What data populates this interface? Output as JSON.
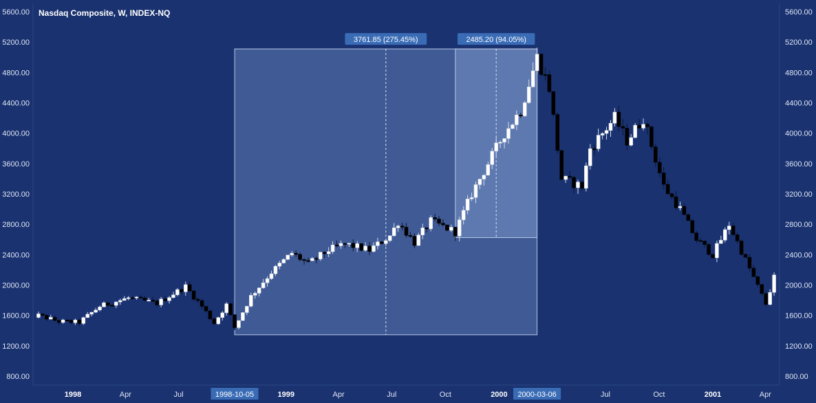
{
  "chart_data": {
    "type": "candlestick",
    "title": "Nasdaq Composite, W, INDEX-NQ",
    "ylim": [
      640,
      5720
    ],
    "y_ticks": [
      "5600.00",
      "5200.00",
      "4800.00",
      "4400.00",
      "4000.00",
      "3600.00",
      "3200.00",
      "2800.00",
      "2400.00",
      "2000.00",
      "1600.00",
      "1200.00",
      "800.00"
    ],
    "x_ticks": [
      {
        "label": "1998",
        "bold": true,
        "date": "1998-01-01"
      },
      {
        "label": "Apr",
        "bold": false,
        "date": "1998-04-01"
      },
      {
        "label": "Jul",
        "bold": false,
        "date": "1998-07-01"
      },
      {
        "label": "1999",
        "bold": true,
        "date": "1999-01-01"
      },
      {
        "label": "Apr",
        "bold": false,
        "date": "1999-04-01"
      },
      {
        "label": "Jul",
        "bold": false,
        "date": "1999-07-01"
      },
      {
        "label": "Oct",
        "bold": false,
        "date": "1999-10-01"
      },
      {
        "label": "2000",
        "bold": true,
        "date": "2000-01-01"
      },
      {
        "label": "Jul",
        "bold": false,
        "date": "2000-07-01"
      },
      {
        "label": "Oct",
        "bold": false,
        "date": "2000-10-01"
      },
      {
        "label": "2001",
        "bold": true,
        "date": "2001-01-01"
      },
      {
        "label": "Apr",
        "bold": false,
        "date": "2001-04-01"
      }
    ],
    "x_highlight_labels": [
      {
        "label": "1998-10-05",
        "date": "1998-10-05"
      },
      {
        "label": "2000-03-06",
        "date": "2000-03-06"
      }
    ],
    "measure_boxes": [
      {
        "start": "1998-10-05",
        "end": "2000-03-06",
        "low": 1345,
        "high": 5110,
        "label": "3761.85 (275.45%)"
      },
      {
        "start": "1999-10-18",
        "end": "2000-03-06",
        "low": 2625,
        "high": 5110,
        "label": "2485.20 (94.05%)"
      }
    ],
    "series": [
      {
        "segments": [
          {
            "date": "1997-10-06",
            "value": 1580
          },
          {
            "date": "1997-11-03",
            "value": 1600
          },
          {
            "date": "1997-12-08",
            "value": 1520
          },
          {
            "date": "1998-01-12",
            "value": 1510
          },
          {
            "date": "1998-02-16",
            "value": 1720
          },
          {
            "date": "1998-04-06",
            "value": 1830
          },
          {
            "date": "1998-05-25",
            "value": 1760
          },
          {
            "date": "1998-07-13",
            "value": 1980
          },
          {
            "date": "1998-08-10",
            "value": 1720
          },
          {
            "date": "1998-08-31",
            "value": 1500
          },
          {
            "date": "1998-09-21",
            "value": 1740
          },
          {
            "date": "1998-10-05",
            "value": 1440
          },
          {
            "date": "1998-11-02",
            "value": 1850
          },
          {
            "date": "1998-12-07",
            "value": 2170
          },
          {
            "date": "1999-01-11",
            "value": 2420
          },
          {
            "date": "1999-02-08",
            "value": 2280
          },
          {
            "date": "1999-03-15",
            "value": 2460
          },
          {
            "date": "1999-04-12",
            "value": 2540
          },
          {
            "date": "1999-05-24",
            "value": 2460
          },
          {
            "date": "1999-06-28",
            "value": 2650
          },
          {
            "date": "1999-07-12",
            "value": 2830
          },
          {
            "date": "1999-08-09",
            "value": 2560
          },
          {
            "date": "1999-09-06",
            "value": 2840
          },
          {
            "date": "1999-10-18",
            "value": 2700
          },
          {
            "date": "1999-11-15",
            "value": 3200
          },
          {
            "date": "1999-12-13",
            "value": 3600
          },
          {
            "date": "2000-01-10",
            "value": 4000
          },
          {
            "date": "2000-02-07",
            "value": 4300
          },
          {
            "date": "2000-03-06",
            "value": 5000
          },
          {
            "date": "2000-03-27",
            "value": 4600
          },
          {
            "date": "2000-04-17",
            "value": 3400
          },
          {
            "date": "2000-05-22",
            "value": 3300
          },
          {
            "date": "2000-06-05",
            "value": 3800
          },
          {
            "date": "2000-07-17",
            "value": 4200
          },
          {
            "date": "2000-08-07",
            "value": 3900
          },
          {
            "date": "2000-09-04",
            "value": 4200
          },
          {
            "date": "2000-10-09",
            "value": 3300
          },
          {
            "date": "2000-11-06",
            "value": 3000
          },
          {
            "date": "2000-12-04",
            "value": 2600
          },
          {
            "date": "2001-01-01",
            "value": 2400
          },
          {
            "date": "2001-01-29",
            "value": 2800
          },
          {
            "date": "2001-03-12",
            "value": 2100
          },
          {
            "date": "2001-04-02",
            "value": 1750
          },
          {
            "date": "2001-04-16",
            "value": 2100
          }
        ]
      }
    ],
    "colors": {
      "background": "#1a3270",
      "up_body": "#ffffff",
      "down_body": "#000000",
      "grid": "#2a4585",
      "box_outer": "#6d8bc2",
      "box_inner": "#8aa5d3",
      "badge": "#3a6cb6"
    },
    "grid": false,
    "legend": "none"
  }
}
